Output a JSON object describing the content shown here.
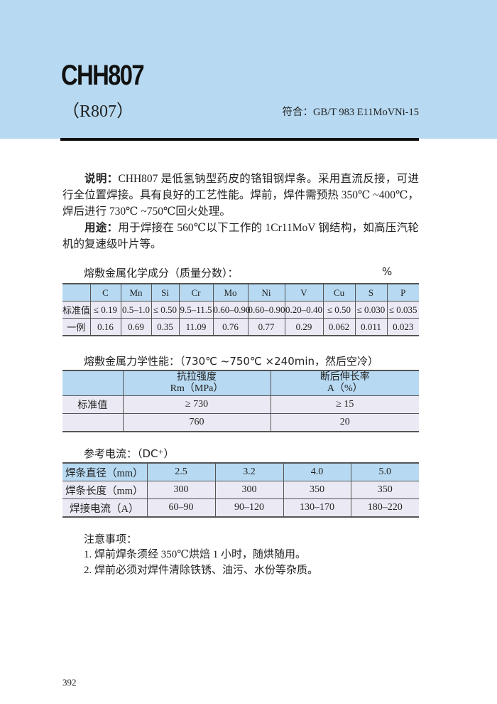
{
  "header": {
    "title": "CHH807",
    "subtitle": "（R807）",
    "standard": "符合：GB/T 983 E11MoVNi-15",
    "banner_color": "#b7d9f1"
  },
  "description": {
    "label": "说明：",
    "text": "CHH807 是低氢钠型药皮的铬钼钢焊条。采用直流反接，可进行全位置焊接。具有良好的工艺性能。焊前，焊件需预热 350℃ ~400℃，焊后进行 730℃ ~750℃回火处理。",
    "usage_label": "用途：",
    "usage_text": "用于焊接在 560℃以下工作的 1Cr11MoV 钢结构，如高压汽轮机的复速级叶片等。"
  },
  "chemistry": {
    "title": "熔敷金属化学成分（质量分数）：",
    "unit": "%",
    "columns": [
      "",
      "C",
      "Mn",
      "Si",
      "Cr",
      "Mo",
      "Ni",
      "V",
      "Cu",
      "S",
      "P"
    ],
    "rows": [
      [
        "标准值",
        "≤ 0.19",
        "0.5–1.0",
        "≤ 0.50",
        "9.5–11.5",
        "0.60–0.90",
        "0.60–0.90",
        "0.20–0.40",
        "≤ 0.50",
        "≤ 0.030",
        "≤ 0.035"
      ],
      [
        "一例",
        "0.16",
        "0.69",
        "0.35",
        "11.09",
        "0.76",
        "0.77",
        "0.29",
        "0.062",
        "0.011",
        "0.023"
      ]
    ]
  },
  "mechanical": {
    "title": "熔敷金属力学性能：（730℃ ~750℃ ×240min，然后空冷）",
    "columns": [
      {
        "l1": "",
        "l2": ""
      },
      {
        "l1": "抗拉强度",
        "l2": "Rm（MPa）"
      },
      {
        "l1": "断后伸长率",
        "l2": "A（%）"
      }
    ],
    "rows": [
      [
        "标准值",
        "≥ 730",
        "≥ 15"
      ],
      [
        "",
        "760",
        "20"
      ]
    ]
  },
  "current": {
    "title": "参考电流：（DC⁺）",
    "rows": [
      [
        "焊条直径（mm）",
        "2.5",
        "3.2",
        "4.0",
        "5.0"
      ],
      [
        "焊条长度（mm）",
        "300",
        "300",
        "350",
        "350"
      ],
      [
        "焊接电流（A）",
        "60–90",
        "90–120",
        "130–170",
        "180–220"
      ]
    ]
  },
  "notes": {
    "title": "注意事项：",
    "items": [
      "1. 焊前焊条须经 350℃烘焙 1 小时，随烘随用。",
      "2. 焊前必须对焊件清除铁锈、油污、水份等杂质。"
    ]
  },
  "page_number": "392"
}
